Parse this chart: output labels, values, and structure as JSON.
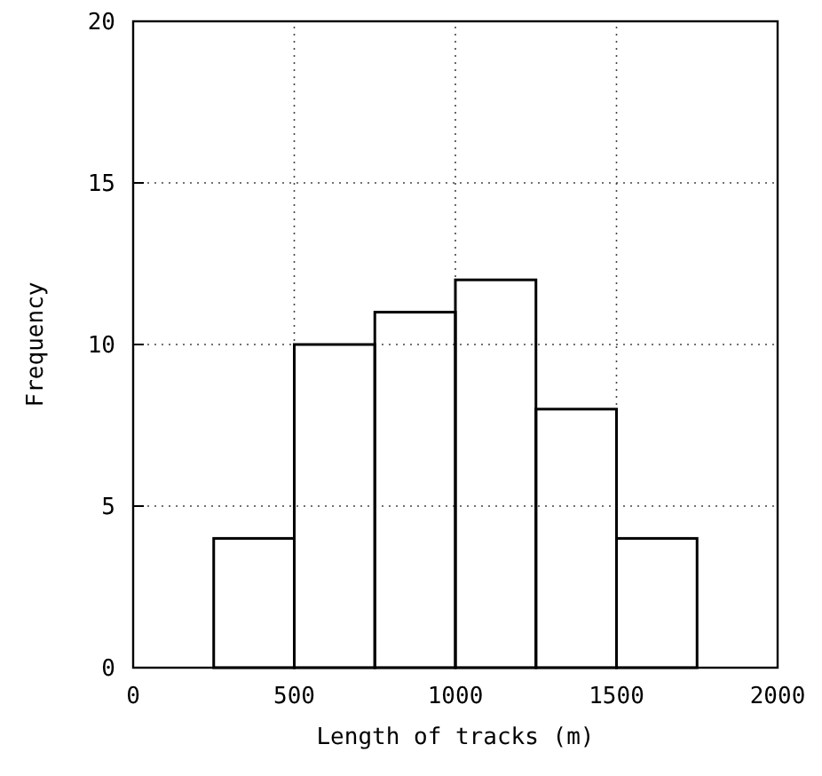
{
  "chart_data": {
    "type": "histogram",
    "xlabel": "Length of tracks (m)",
    "ylabel": "Frequency",
    "bins": [
      250,
      500,
      750,
      1000,
      1250,
      1500,
      1750
    ],
    "values": [
      4,
      10,
      11,
      12,
      8,
      4
    ],
    "color": "#000000",
    "xlim": [
      0,
      2000
    ],
    "xticks": [
      0,
      500,
      1000,
      1500,
      2000
    ],
    "ylim": [
      0,
      20
    ],
    "yticks": [
      0,
      5,
      10,
      15,
      20
    ],
    "grid": true,
    "line_style": "dotted"
  }
}
